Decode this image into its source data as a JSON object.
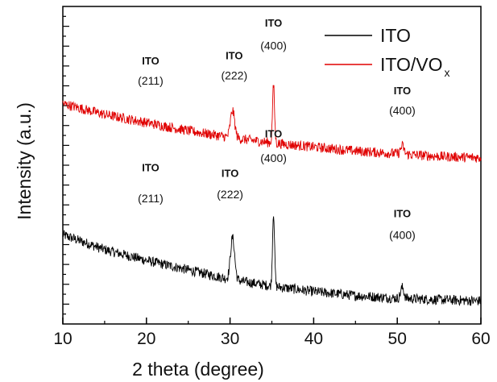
{
  "chart_data": {
    "type": "line",
    "xlabel": "2 theta (degree)",
    "ylabel": "Intensity (a.u.)",
    "xlim": [
      10,
      60
    ],
    "x_ticks": [
      10,
      20,
      30,
      40,
      50,
      60
    ],
    "x_tick_labels": [
      "10",
      "20",
      "30",
      "40",
      "50",
      "60"
    ],
    "y_ticks_labeled": false,
    "grid": false,
    "legend": {
      "placement": "top-right",
      "entries": [
        {
          "label": "ITO",
          "subscript": "",
          "color": "#000000"
        },
        {
          "label": "ITO/VO",
          "subscript": "x",
          "color": "#e00000"
        }
      ]
    },
    "series": [
      {
        "name": "ITO",
        "color": "#000000",
        "baseline": [
          [
            10,
            0.06
          ],
          [
            15,
            -0.05
          ],
          [
            20,
            -0.13
          ],
          [
            25,
            -0.2
          ],
          [
            30,
            -0.27
          ],
          [
            35,
            -0.32
          ],
          [
            40,
            -0.36
          ],
          [
            45,
            -0.39
          ],
          [
            50,
            -0.41
          ],
          [
            55,
            -0.42
          ],
          [
            60,
            -0.43
          ]
        ],
        "peaks": [
          [
            30.3,
            0.31,
            0.25
          ],
          [
            35.2,
            0.55,
            0.12
          ],
          [
            50.6,
            0.08,
            0.2
          ]
        ]
      },
      {
        "name": "ITO/VO",
        "color": "#e00000",
        "baseline": [
          [
            10,
            1.03
          ],
          [
            15,
            0.95
          ],
          [
            20,
            0.89
          ],
          [
            25,
            0.83
          ],
          [
            30,
            0.78
          ],
          [
            35,
            0.74
          ],
          [
            40,
            0.71
          ],
          [
            45,
            0.68
          ],
          [
            50,
            0.66
          ],
          [
            55,
            0.64
          ],
          [
            60,
            0.63
          ]
        ],
        "peaks": [
          [
            30.3,
            0.2,
            0.25
          ],
          [
            35.2,
            0.43,
            0.12
          ],
          [
            50.6,
            0.06,
            0.2
          ]
        ]
      }
    ],
    "annotations": [
      {
        "name": "ITO",
        "hkl": "(211)",
        "x": 20.5,
        "y_name": 1.32,
        "y_hkl": 1.17
      },
      {
        "name": "ITO",
        "hkl": "(222)",
        "x": 30.5,
        "y_name": 1.36,
        "y_hkl": 1.21
      },
      {
        "name": "ITO",
        "hkl": "(400)",
        "x": 35.2,
        "y_name": 1.6,
        "y_hkl": 1.43
      },
      {
        "name": "ITO",
        "hkl": "(400)",
        "x": 50.6,
        "y_name": 1.1,
        "y_hkl": 0.95
      },
      {
        "name": "ITO",
        "hkl": "(211)",
        "x": 20.5,
        "y_name": 0.53,
        "y_hkl": 0.3
      },
      {
        "name": "ITO",
        "hkl": "(222)",
        "x": 30.0,
        "y_name": 0.49,
        "y_hkl": 0.33
      },
      {
        "name": "ITO",
        "hkl": "(400)",
        "x": 35.2,
        "y_name": 0.78,
        "y_hkl": 0.6
      },
      {
        "name": "ITO",
        "hkl": "(400)",
        "x": 50.6,
        "y_name": 0.19,
        "y_hkl": 0.03
      }
    ]
  }
}
